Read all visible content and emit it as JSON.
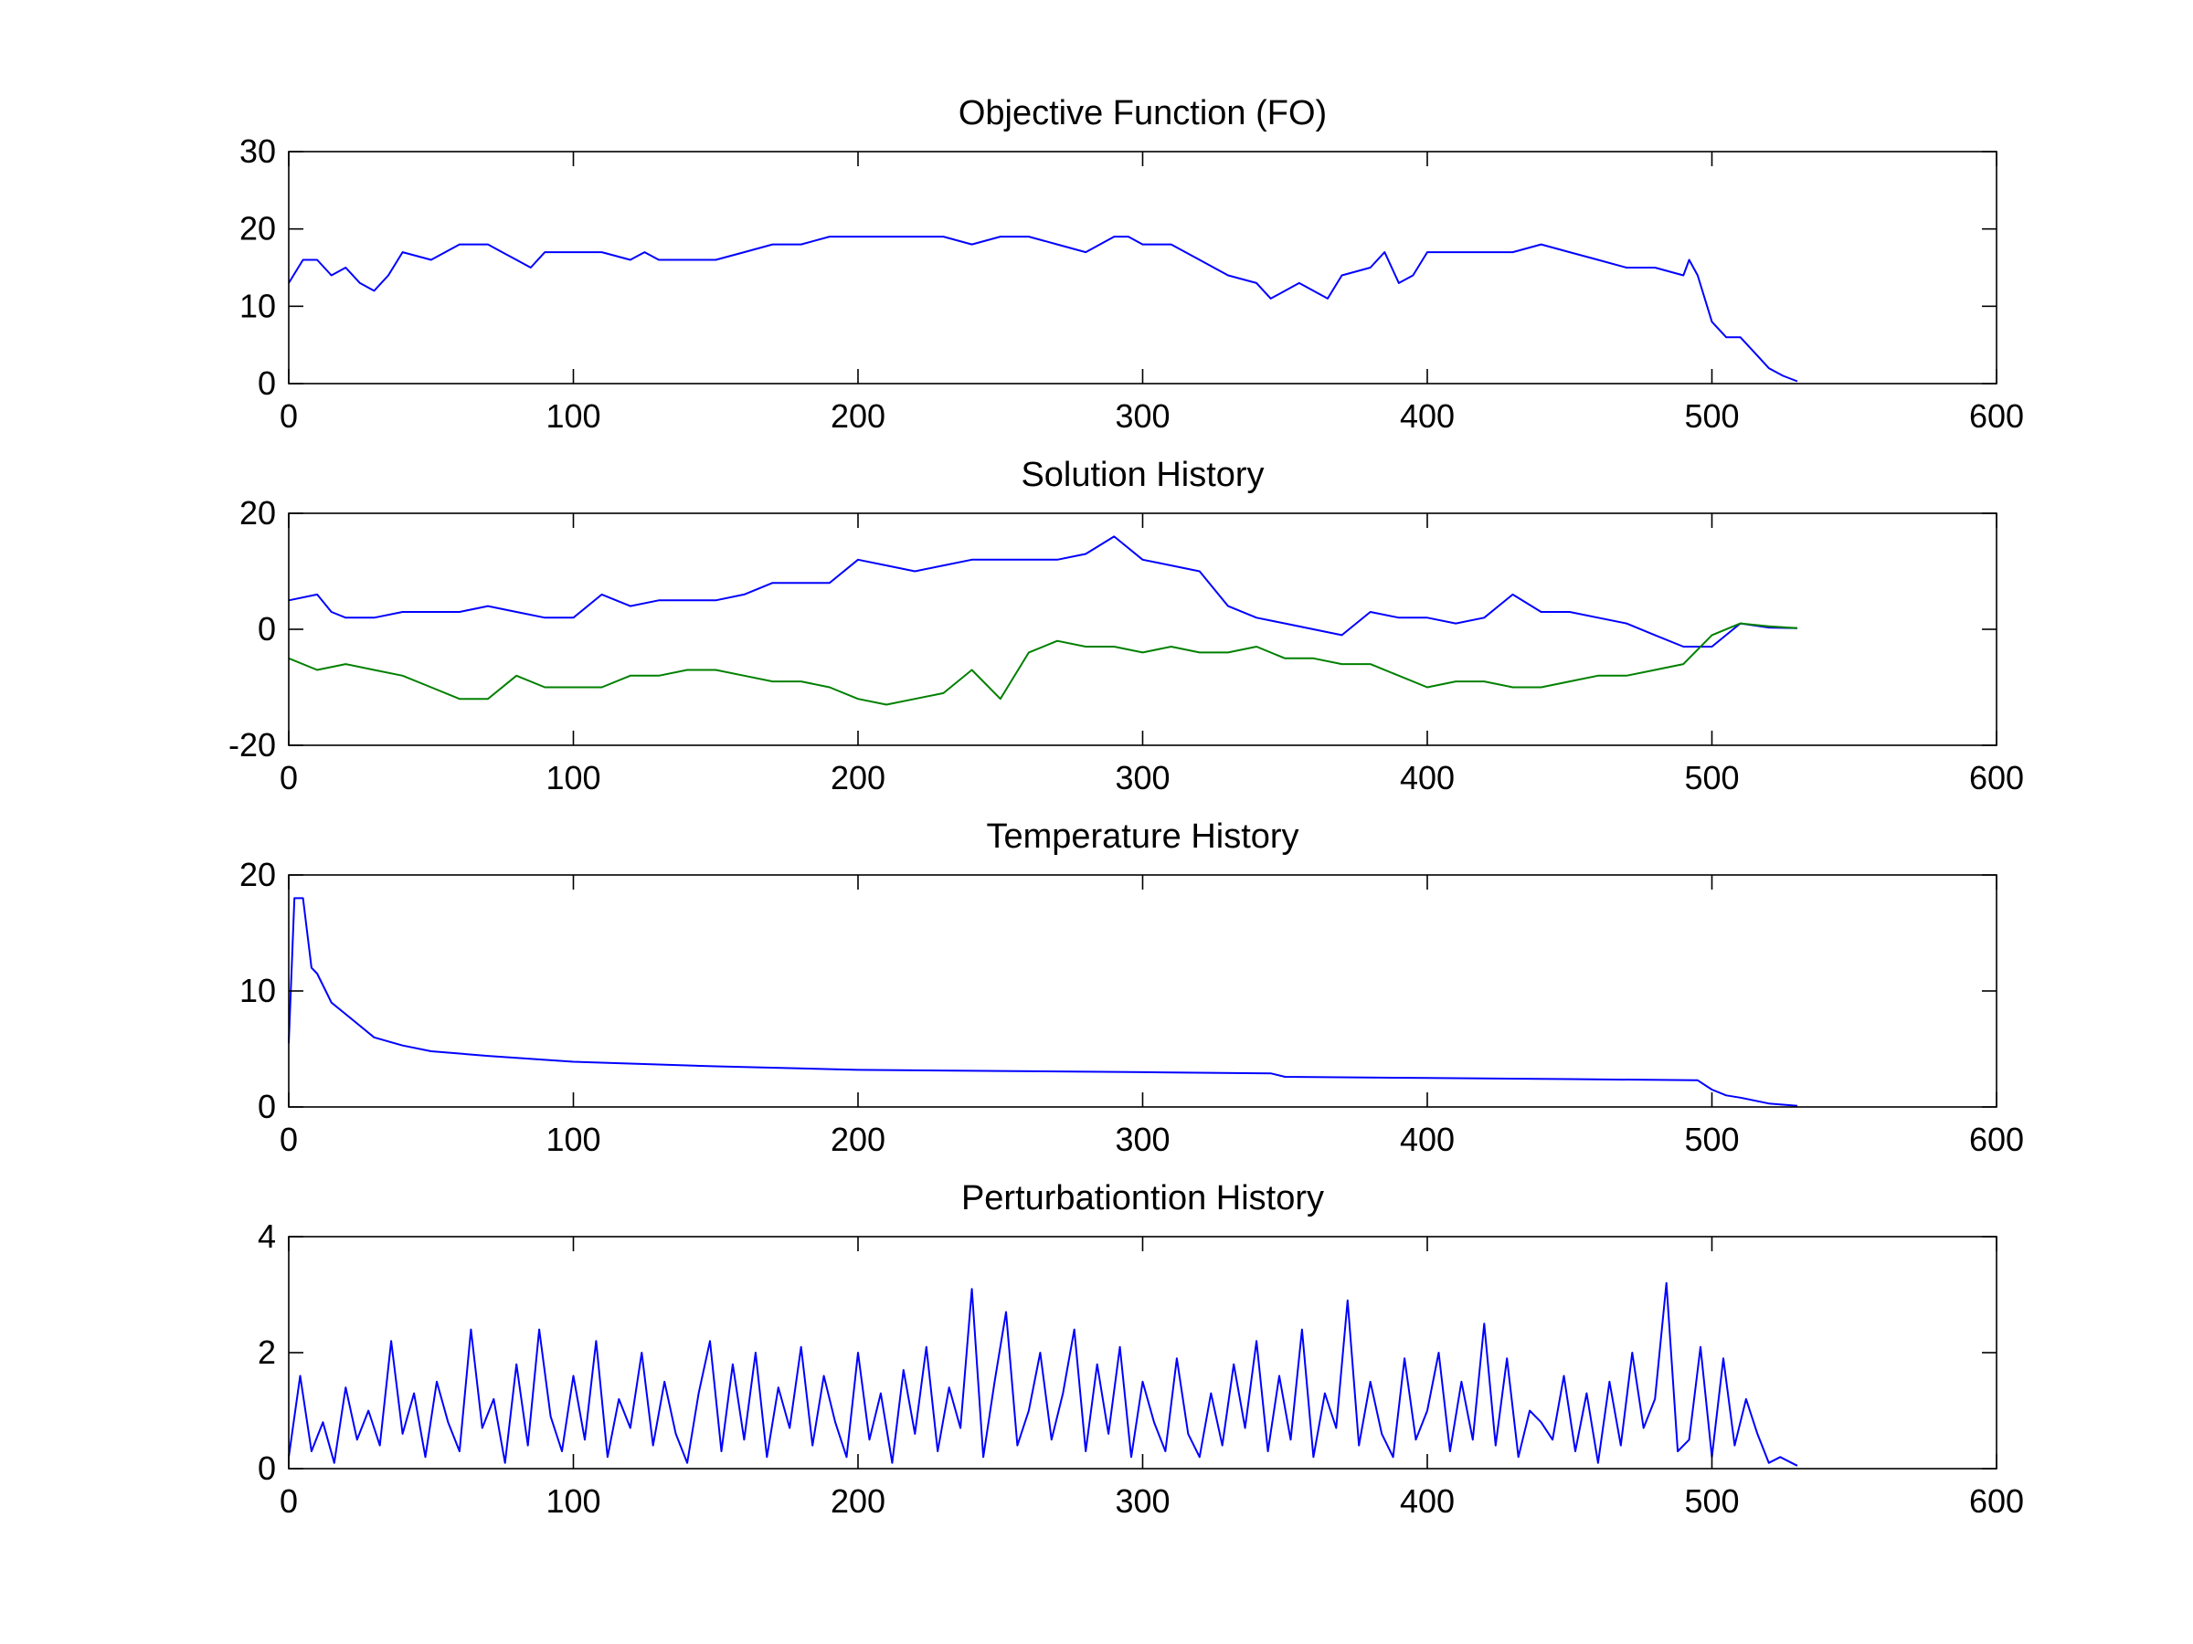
{
  "figure": {
    "background": "#ffffff"
  },
  "chart_data": [
    {
      "type": "line",
      "title": "Objective Function (FO)",
      "xlim": [
        0,
        600
      ],
      "ylim": [
        0,
        30
      ],
      "x_ticks": [
        0,
        100,
        200,
        300,
        400,
        500,
        600
      ],
      "y_ticks": [
        0,
        10,
        20,
        30
      ],
      "series": [
        {
          "color": "#0000ff",
          "x": [
            0,
            5,
            10,
            15,
            20,
            25,
            30,
            35,
            40,
            50,
            60,
            70,
            75,
            80,
            85,
            90,
            100,
            110,
            120,
            125,
            130,
            140,
            150,
            160,
            170,
            180,
            190,
            200,
            210,
            220,
            230,
            240,
            250,
            260,
            270,
            280,
            290,
            295,
            300,
            310,
            320,
            330,
            340,
            345,
            350,
            355,
            360,
            365,
            370,
            380,
            385,
            390,
            395,
            400,
            410,
            420,
            430,
            440,
            450,
            460,
            470,
            480,
            490,
            492,
            495,
            500,
            505,
            510,
            515,
            520,
            525,
            530
          ],
          "y": [
            13,
            16,
            16,
            14,
            15,
            13,
            12,
            14,
            17,
            16,
            18,
            18,
            17,
            16,
            15,
            17,
            17,
            17,
            16,
            17,
            16,
            16,
            16,
            17,
            18,
            18,
            19,
            19,
            19,
            19,
            19,
            18,
            19,
            19,
            18,
            17,
            19,
            19,
            18,
            18,
            16,
            14,
            13,
            11,
            12,
            13,
            12,
            11,
            14,
            15,
            17,
            13,
            14,
            17,
            17,
            17,
            17,
            18,
            17,
            16,
            15,
            15,
            14,
            16,
            14,
            8,
            6,
            6,
            4,
            2,
            1,
            0.3
          ]
        }
      ]
    },
    {
      "type": "line",
      "title": "Solution History",
      "xlim": [
        0,
        600
      ],
      "ylim": [
        -20,
        20
      ],
      "x_ticks": [
        0,
        100,
        200,
        300,
        400,
        500,
        600
      ],
      "y_ticks": [
        -20,
        0,
        20
      ],
      "series": [
        {
          "color": "#0000ff",
          "x": [
            0,
            10,
            15,
            20,
            30,
            40,
            50,
            60,
            70,
            80,
            90,
            100,
            110,
            120,
            130,
            140,
            150,
            160,
            170,
            180,
            190,
            200,
            210,
            220,
            230,
            240,
            250,
            260,
            270,
            280,
            290,
            300,
            310,
            320,
            330,
            340,
            350,
            360,
            370,
            380,
            390,
            400,
            410,
            420,
            430,
            440,
            450,
            460,
            470,
            480,
            490,
            500,
            510,
            520,
            530
          ],
          "y": [
            5,
            6,
            3,
            2,
            2,
            3,
            3,
            3,
            4,
            3,
            2,
            2,
            6,
            4,
            5,
            5,
            5,
            6,
            8,
            8,
            8,
            12,
            11,
            10,
            11,
            12,
            12,
            12,
            12,
            13,
            16,
            12,
            11,
            10,
            4,
            2,
            1,
            0,
            -1,
            3,
            2,
            2,
            1,
            2,
            6,
            3,
            3,
            2,
            1,
            -1,
            -3,
            -3,
            1,
            0.3,
            0.2
          ]
        },
        {
          "color": "#008000",
          "x": [
            0,
            10,
            20,
            30,
            40,
            50,
            60,
            70,
            80,
            90,
            100,
            110,
            120,
            130,
            140,
            150,
            160,
            170,
            180,
            190,
            200,
            210,
            220,
            230,
            240,
            250,
            260,
            270,
            280,
            290,
            300,
            310,
            320,
            330,
            340,
            350,
            360,
            370,
            380,
            390,
            400,
            410,
            420,
            430,
            440,
            450,
            460,
            470,
            480,
            490,
            500,
            510,
            520,
            530
          ],
          "y": [
            -5,
            -7,
            -6,
            -7,
            -8,
            -10,
            -12,
            -12,
            -8,
            -10,
            -10,
            -10,
            -8,
            -8,
            -7,
            -7,
            -8,
            -9,
            -9,
            -10,
            -12,
            -13,
            -12,
            -11,
            -7,
            -12,
            -4,
            -2,
            -3,
            -3,
            -4,
            -3,
            -4,
            -4,
            -3,
            -5,
            -5,
            -6,
            -6,
            -8,
            -10,
            -9,
            -9,
            -10,
            -10,
            -9,
            -8,
            -8,
            -7,
            -6,
            -1,
            1,
            0.5,
            0.2
          ]
        }
      ]
    },
    {
      "type": "line",
      "title": "Temperature History",
      "xlim": [
        0,
        600
      ],
      "ylim": [
        0,
        20
      ],
      "x_ticks": [
        0,
        100,
        200,
        300,
        400,
        500,
        600
      ],
      "y_ticks": [
        0,
        10,
        20
      ],
      "series": [
        {
          "color": "#0000ff",
          "x": [
            0,
            2,
            5,
            8,
            10,
            13,
            15,
            20,
            25,
            30,
            40,
            50,
            70,
            100,
            150,
            200,
            250,
            300,
            345,
            350,
            400,
            450,
            495,
            500,
            505,
            510,
            520,
            530
          ],
          "y": [
            5.5,
            18,
            18,
            12,
            11.5,
            10,
            9,
            8,
            7,
            6,
            5.3,
            4.8,
            4.4,
            3.9,
            3.5,
            3.2,
            3.1,
            3.0,
            2.9,
            2.6,
            2.5,
            2.4,
            2.3,
            1.5,
            1.0,
            0.8,
            0.3,
            0.1
          ]
        }
      ]
    },
    {
      "type": "line",
      "title": "Perturbationtion History",
      "xlim": [
        0,
        600
      ],
      "ylim": [
        0,
        4
      ],
      "x_ticks": [
        0,
        100,
        200,
        300,
        400,
        500,
        600
      ],
      "y_ticks": [
        0,
        2,
        4
      ],
      "series": [
        {
          "color": "#0000ff",
          "x": [
            0,
            4,
            8,
            12,
            16,
            20,
            24,
            28,
            32,
            36,
            40,
            44,
            48,
            52,
            56,
            60,
            64,
            68,
            72,
            76,
            80,
            84,
            88,
            92,
            96,
            100,
            104,
            108,
            112,
            116,
            120,
            124,
            128,
            132,
            136,
            140,
            144,
            148,
            152,
            156,
            160,
            164,
            168,
            172,
            176,
            180,
            184,
            188,
            192,
            196,
            200,
            204,
            208,
            212,
            216,
            220,
            224,
            228,
            232,
            236,
            240,
            244,
            248,
            252,
            256,
            260,
            264,
            268,
            272,
            276,
            280,
            284,
            288,
            292,
            296,
            300,
            304,
            308,
            312,
            316,
            320,
            324,
            328,
            332,
            336,
            340,
            344,
            348,
            352,
            356,
            360,
            364,
            368,
            372,
            376,
            380,
            384,
            388,
            392,
            396,
            400,
            404,
            408,
            412,
            416,
            420,
            424,
            428,
            432,
            436,
            440,
            444,
            448,
            452,
            456,
            460,
            464,
            468,
            472,
            476,
            480,
            484,
            488,
            492,
            496,
            500,
            504,
            508,
            512,
            516,
            520,
            524,
            528,
            530
          ],
          "y": [
            0.2,
            1.6,
            0.3,
            0.8,
            0.1,
            1.4,
            0.5,
            1.0,
            0.4,
            2.2,
            0.6,
            1.3,
            0.2,
            1.5,
            0.8,
            0.3,
            2.4,
            0.7,
            1.2,
            0.1,
            1.8,
            0.4,
            2.4,
            0.9,
            0.3,
            1.6,
            0.5,
            2.2,
            0.2,
            1.2,
            0.7,
            2.0,
            0.4,
            1.5,
            0.6,
            0.1,
            1.3,
            2.2,
            0.3,
            1.8,
            0.5,
            2.0,
            0.2,
            1.4,
            0.7,
            2.1,
            0.4,
            1.6,
            0.8,
            0.2,
            2.0,
            0.5,
            1.3,
            0.1,
            1.7,
            0.6,
            2.1,
            0.3,
            1.4,
            0.7,
            3.1,
            0.2,
            1.5,
            2.7,
            0.4,
            1.0,
            2.0,
            0.5,
            1.3,
            2.4,
            0.3,
            1.8,
            0.6,
            2.1,
            0.2,
            1.5,
            0.8,
            0.3,
            1.9,
            0.6,
            0.2,
            1.3,
            0.4,
            1.8,
            0.7,
            2.2,
            0.3,
            1.6,
            0.5,
            2.4,
            0.2,
            1.3,
            0.7,
            2.9,
            0.4,
            1.5,
            0.6,
            0.2,
            1.9,
            0.5,
            1.0,
            2.0,
            0.3,
            1.5,
            0.5,
            2.5,
            0.4,
            1.9,
            0.2,
            1.0,
            0.8,
            0.5,
            1.6,
            0.3,
            1.3,
            0.1,
            1.5,
            0.4,
            2.0,
            0.7,
            1.2,
            3.2,
            0.3,
            0.5,
            2.1,
            0.2,
            1.9,
            0.4,
            1.2,
            0.6,
            0.1,
            0.2,
            0.1,
            0.05
          ]
        }
      ]
    }
  ]
}
